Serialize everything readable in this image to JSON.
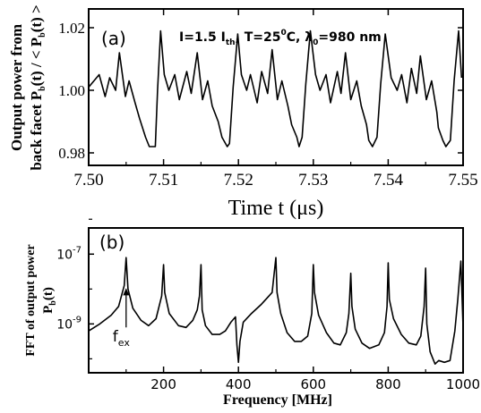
{
  "chart_data": [
    {
      "panel_label": "(a)",
      "type": "line",
      "annotation": {
        "I": "I=1.5 I",
        "I_sub": "th",
        "T": "T=25",
        "T_sup": "0",
        "T_unit": "C,",
        "lambda": "λ",
        "lambda_sub": "0",
        "lambda_val": "=980 nm"
      },
      "xlabel": "Time t (μs)",
      "ylabel_line1": "Output power from",
      "ylabel_line2_a": "back facet P",
      "ylabel_line2_sub1": "b",
      "ylabel_line2_b": "(t) / < P",
      "ylabel_line2_sub2": "b",
      "ylabel_line2_c": "(t) >",
      "xlim": [
        7.5,
        7.55
      ],
      "ylim": [
        0.976,
        1.026
      ],
      "xticks": [
        7.5,
        7.51,
        7.52,
        7.53,
        7.54,
        7.55
      ],
      "xtick_labels": [
        "7.50",
        "7.51",
        "7.52",
        "7.53",
        "7.54",
        "7.55"
      ],
      "yticks": [
        0.98,
        1.0,
        1.02
      ],
      "ytick_labels": [
        "0.98",
        "1.00",
        "1.02"
      ],
      "series": [
        {
          "x": [
            7.5,
            7.5014,
            7.5022,
            7.5028,
            7.5036,
            7.5041,
            7.5049,
            7.5054,
            7.5062,
            7.5068,
            7.5076,
            7.5081,
            7.5089,
            7.5092,
            7.5096,
            7.5101,
            7.5107,
            7.5115,
            7.5121,
            7.5131,
            7.5137,
            7.5145,
            7.5152,
            7.5159,
            7.5165,
            7.5173,
            7.5178,
            7.5185,
            7.5188,
            7.5193,
            7.5199,
            7.5204,
            7.5211,
            7.5216,
            7.5225,
            7.5231,
            7.5239,
            7.5245,
            7.5252,
            7.5258,
            7.5266,
            7.5271,
            7.5278,
            7.5281,
            7.5285,
            7.529,
            7.5296,
            7.5303,
            7.5309,
            7.5317,
            7.5323,
            7.5332,
            7.5337,
            7.5343,
            7.535,
            7.5358,
            7.5364,
            7.5371,
            7.5374,
            7.5379,
            7.5385,
            7.539,
            7.5396,
            7.5404,
            7.5412,
            7.5418,
            7.5425,
            7.5431,
            7.5438,
            7.5443,
            7.5451,
            7.5458,
            7.5465,
            7.5467,
            7.5473,
            7.5477,
            7.5483,
            7.5488,
            7.5494,
            7.5498
          ],
          "y": [
            1.001,
            1.005,
            0.998,
            1.004,
            1.0,
            1.012,
            0.998,
            1.003,
            0.996,
            0.991,
            0.985,
            0.982,
            0.982,
            1.0,
            1.019,
            1.005,
            1.0,
            1.005,
            0.997,
            1.006,
            0.999,
            1.012,
            0.997,
            1.003,
            0.995,
            0.99,
            0.985,
            0.982,
            0.983,
            1.001,
            1.018,
            1.005,
            1.0,
            1.005,
            0.996,
            1.006,
            0.999,
            1.013,
            0.997,
            1.003,
            0.995,
            0.989,
            0.985,
            0.982,
            0.985,
            1.002,
            1.019,
            1.005,
            1.0,
            1.005,
            0.996,
            1.006,
            0.999,
            1.012,
            0.997,
            1.003,
            0.995,
            0.989,
            0.984,
            0.982,
            0.985,
            1.002,
            1.018,
            1.004,
            1.0,
            1.005,
            0.996,
            1.007,
            0.999,
            1.011,
            0.997,
            1.003,
            0.993,
            0.988,
            0.984,
            0.982,
            0.984,
            1.003,
            1.019,
            1.004
          ]
        }
      ]
    },
    {
      "panel_label": "(b)",
      "type": "line",
      "xlabel": "Frequency [MHz]",
      "ylabel_line1": "FFT of output power",
      "ylabel_line2": "P",
      "ylabel_line2_sub": "b",
      "ylabel_line2_end": "(t)",
      "x_scale": "linear",
      "y_scale": "log",
      "xlim": [
        0,
        1000
      ],
      "ylim_exp": [
        -10.4,
        -6.25
      ],
      "xticks": [
        200,
        400,
        600,
        800,
        1000
      ],
      "xtick_labels": [
        "200",
        "400",
        "600",
        "800",
        "1000"
      ],
      "yticks_exp": [
        -9,
        -7
      ],
      "ytick_base": "10",
      "ytick_exps": [
        "-9",
        "-7"
      ],
      "annotation_arrow": {
        "text": "f",
        "sub": "ex",
        "x": 100
      },
      "series": [
        {
          "x": [
            0,
            30,
            60,
            80,
            95,
            100,
            105,
            118,
            140,
            160,
            180,
            195,
            200,
            203,
            215,
            240,
            260,
            278,
            290,
            296,
            300,
            303,
            312,
            330,
            350,
            365,
            380,
            392,
            396,
            400,
            404,
            413,
            435,
            460,
            490,
            500,
            503,
            513,
            530,
            550,
            568,
            585,
            596,
            600,
            603,
            614,
            635,
            655,
            672,
            688,
            695,
            700,
            703,
            712,
            730,
            750,
            775,
            790,
            797,
            800,
            803,
            814,
            835,
            855,
            875,
            887,
            896,
            900,
            903,
            912,
            925,
            935,
            950,
            965,
            978,
            986,
            994,
            1000
          ],
          "y_exp": [
            -9.2,
            -9.0,
            -8.75,
            -8.5,
            -7.9,
            -7.1,
            -8.0,
            -8.55,
            -8.9,
            -9.05,
            -8.85,
            -8.2,
            -7.3,
            -8.1,
            -8.7,
            -9.05,
            -9.1,
            -8.9,
            -8.6,
            -8.2,
            -7.3,
            -8.6,
            -9.05,
            -9.3,
            -9.3,
            -9.2,
            -8.95,
            -8.8,
            -9.6,
            -10.1,
            -9.5,
            -8.95,
            -8.7,
            -8.45,
            -8.1,
            -7.1,
            -8.1,
            -8.7,
            -9.25,
            -9.5,
            -9.5,
            -9.35,
            -8.7,
            -7.3,
            -8.1,
            -8.75,
            -9.25,
            -9.55,
            -9.6,
            -9.25,
            -8.7,
            -7.55,
            -8.5,
            -9.15,
            -9.55,
            -9.7,
            -9.6,
            -9.25,
            -8.5,
            -7.25,
            -8.3,
            -8.85,
            -9.3,
            -9.55,
            -9.6,
            -9.35,
            -8.5,
            -7.4,
            -9.0,
            -9.8,
            -10.15,
            -10.05,
            -10.1,
            -10.05,
            -9.2,
            -8.3,
            -7.2,
            -9.1
          ]
        }
      ]
    }
  ]
}
